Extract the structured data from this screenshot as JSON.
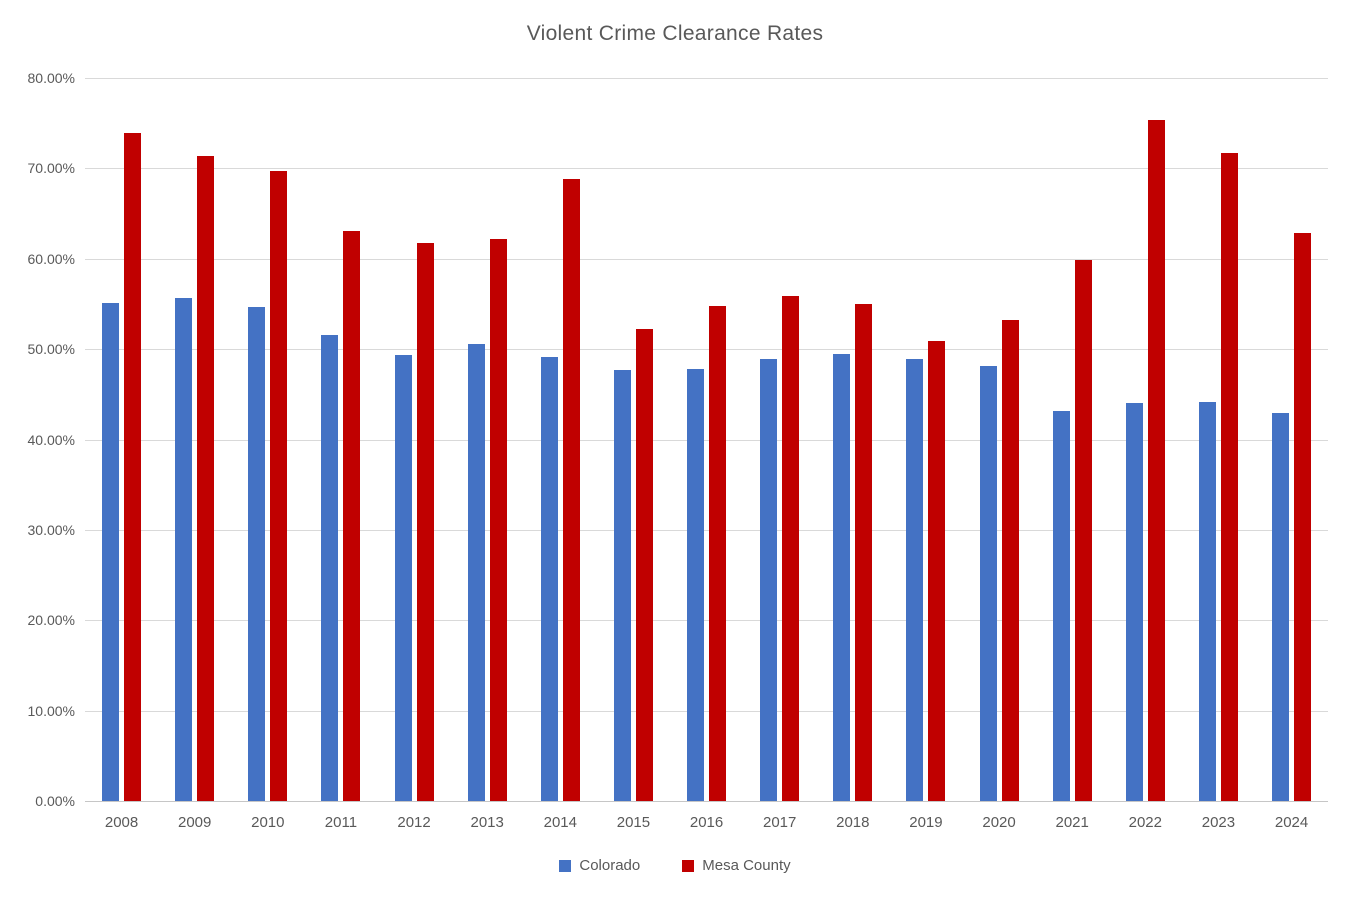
{
  "chart_data": {
    "type": "bar",
    "title": "Violent Crime Clearance Rates",
    "categories": [
      "2008",
      "2009",
      "2010",
      "2011",
      "2012",
      "2013",
      "2014",
      "2015",
      "2016",
      "2017",
      "2018",
      "2019",
      "2020",
      "2021",
      "2022",
      "2023",
      "2024"
    ],
    "series": [
      {
        "name": "Colorado",
        "color": "#4472C4",
        "values": [
          55.1,
          55.7,
          54.7,
          51.6,
          49.4,
          50.6,
          49.1,
          47.7,
          47.8,
          48.9,
          49.5,
          48.9,
          48.1,
          43.2,
          44.0,
          44.2,
          42.9
        ]
      },
      {
        "name": "Mesa County",
        "color": "#C00000",
        "values": [
          73.9,
          71.4,
          69.7,
          63.1,
          61.7,
          62.2,
          68.8,
          52.2,
          54.8,
          55.9,
          55.0,
          50.9,
          53.2,
          59.9,
          75.3,
          71.7,
          62.9
        ]
      }
    ],
    "xlabel": "",
    "ylabel": "",
    "ylim": [
      0,
      80
    ],
    "ytick_step": 10,
    "yticks": [
      "0.00%",
      "10.00%",
      "20.00%",
      "30.00%",
      "40.00%",
      "50.00%",
      "60.00%",
      "70.00%",
      "80.00%"
    ],
    "grid": true,
    "legend_position": "bottom"
  },
  "colors": {
    "title_text": "#595959",
    "axis_text": "#595959",
    "gridline": "#D9D9D9",
    "axis_line": "#C6C6C6",
    "background": "#FFFFFF"
  }
}
